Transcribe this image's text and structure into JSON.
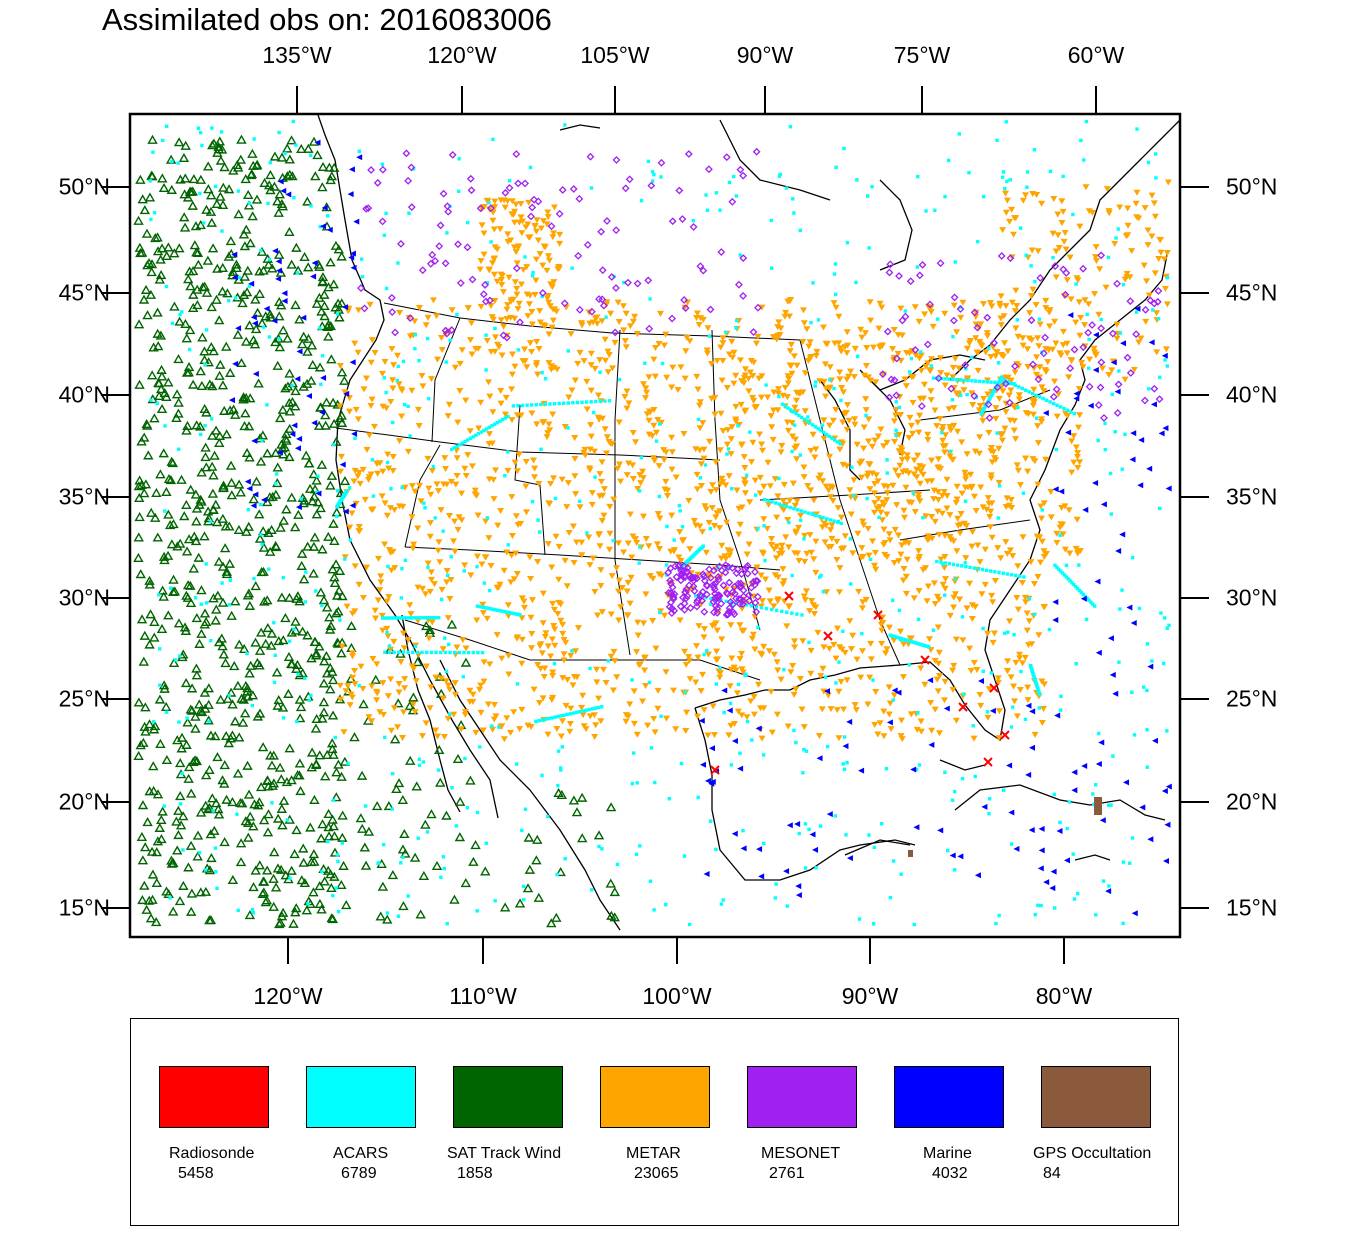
{
  "title": "Assimilated obs on: 2016083006",
  "top_lon_labels": [
    "135°W",
    "120°W",
    "105°W",
    "90°W",
    "75°W",
    "60°W"
  ],
  "bottom_lon_labels": [
    "120°W",
    "110°W",
    "100°W",
    "90°W",
    "80°W"
  ],
  "lat_labels": [
    "50°N",
    "45°N",
    "40°N",
    "35°N",
    "30°N",
    "25°N",
    "20°N",
    "15°N"
  ],
  "legend": [
    {
      "name": "Radiosonde",
      "count": "5458",
      "color": "#ff0000"
    },
    {
      "name": "ACARS",
      "count": "6789",
      "color": "#00ffff"
    },
    {
      "name": "SAT Track Wind",
      "count": "1858",
      "color": "#006400"
    },
    {
      "name": "METAR",
      "count": "23065",
      "color": "#ffa500"
    },
    {
      "name": "MESONET",
      "count": "2761",
      "color": "#a020f0"
    },
    {
      "name": "Marine",
      "count": "4032",
      "color": "#0000ff"
    },
    {
      "name": "GPS Occultation",
      "count": "84",
      "color": "#8b5a3c"
    }
  ],
  "icons": {
    "radiosonde": "red-x-marker-icon",
    "acars": "cyan-dot-marker-icon",
    "sat_track_wind": "green-open-triangle-icon",
    "metar": "orange-down-triangle-icon",
    "mesonet": "purple-diamond-marker-icon",
    "marine": "blue-left-triangle-icon",
    "gps": "brown-square-marker-icon"
  }
}
